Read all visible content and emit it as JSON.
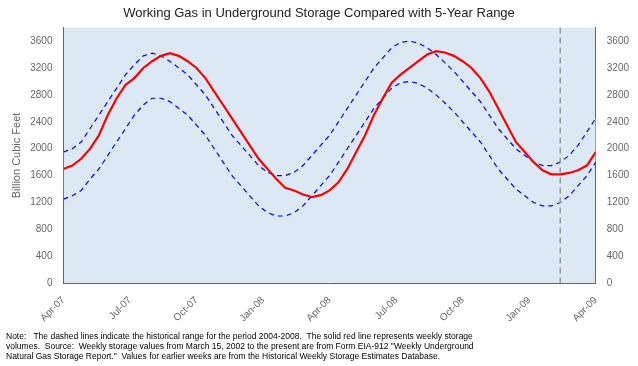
{
  "chart_data": {
    "type": "line",
    "title": "Working Gas in Underground Storage Compared with 5-Year Range",
    "ylabel": "Billion Cubic Feet",
    "note": "Note:   The dashed lines indicate the historical range for the period 2004-2008.  The solid red line represents weekly storage\nvolumes.  Source:  Weekly storage values from March 15, 2002 to the present are from Form EIA-912 \"Weekly Underground\nNatural Gas Storage Report.\"  Values for earlier weeks are from the Historical Weekly Storage Estimates Database.",
    "background_color": "#dce9f5",
    "x": [
      0,
      1,
      2,
      3,
      4,
      5,
      6,
      7,
      8,
      9,
      10,
      11,
      12,
      13,
      14,
      15,
      16,
      17,
      18,
      19,
      20,
      21,
      22,
      23,
      24,
      25,
      26,
      27,
      28,
      29,
      30,
      31,
      32,
      33,
      34,
      35,
      36,
      37,
      38,
      39,
      40,
      41,
      42,
      43,
      44,
      45,
      46,
      47,
      48,
      49,
      50,
      51,
      52,
      53,
      54,
      55,
      56,
      57,
      58,
      59,
      60
    ],
    "xlim": [
      0,
      60
    ],
    "xticks": [
      {
        "value": 0,
        "label": "Apr-07"
      },
      {
        "value": 7.5,
        "label": "Jul-07"
      },
      {
        "value": 15,
        "label": "Oct-07"
      },
      {
        "value": 22.5,
        "label": "Jan-08"
      },
      {
        "value": 30,
        "label": "Apr-08"
      },
      {
        "value": 37.5,
        "label": "Jul-08"
      },
      {
        "value": 45,
        "label": "Oct-08"
      },
      {
        "value": 52.5,
        "label": "Jan-09"
      },
      {
        "value": 60,
        "label": "Apr-09"
      }
    ],
    "ylim": [
      0,
      3800
    ],
    "yticks": [
      0,
      400,
      800,
      1200,
      1600,
      2000,
      2400,
      2800,
      3200,
      3600
    ],
    "y2lim": [
      0,
      3800
    ],
    "y2ticks": [
      0,
      400,
      800,
      1200,
      1600,
      2000,
      2400,
      2800,
      3200,
      3600
    ],
    "series": [
      {
        "color": "blue",
        "line_style": "dashed",
        "values": [
          1950,
          2000,
          2100,
          2300,
          2500,
          2700,
          2900,
          3100,
          3250,
          3380,
          3420,
          3380,
          3300,
          3200,
          3100,
          2950,
          2800,
          2600,
          2400,
          2200,
          2050,
          1900,
          1750,
          1650,
          1600,
          1600,
          1650,
          1750,
          1900,
          2050,
          2200,
          2400,
          2600,
          2800,
          3000,
          3200,
          3350,
          3500,
          3580,
          3600,
          3570,
          3500,
          3400,
          3280,
          3150,
          3000,
          2850,
          2700,
          2500,
          2300,
          2150,
          2000,
          1900,
          1800,
          1750,
          1750,
          1800,
          1900,
          2050,
          2250,
          2450
        ]
      },
      {
        "color": "blue",
        "line_style": "dashed",
        "values": [
          1250,
          1300,
          1380,
          1550,
          1700,
          1900,
          2100,
          2300,
          2500,
          2650,
          2750,
          2750,
          2700,
          2600,
          2500,
          2350,
          2200,
          2000,
          1800,
          1600,
          1450,
          1300,
          1150,
          1050,
          1000,
          1000,
          1050,
          1150,
          1300,
          1450,
          1600,
          1800,
          2000,
          2200,
          2400,
          2600,
          2750,
          2900,
          2980,
          3000,
          2970,
          2900,
          2800,
          2680,
          2550,
          2400,
          2250,
          2100,
          1900,
          1700,
          1550,
          1400,
          1300,
          1200,
          1150,
          1150,
          1200,
          1300,
          1450,
          1600,
          1800
        ]
      },
      {
        "color": "red",
        "line_style": "solid",
        "values": [
          1700,
          1750,
          1850,
          2000,
          2200,
          2500,
          2750,
          2950,
          3050,
          3200,
          3300,
          3380,
          3420,
          3380,
          3300,
          3200,
          3050,
          2850,
          2650,
          2450,
          2250,
          2050,
          1850,
          1700,
          1550,
          1420,
          1380,
          1320,
          1280,
          1310,
          1380,
          1500,
          1700,
          1950,
          2200,
          2500,
          2750,
          2980,
          3100,
          3200,
          3300,
          3400,
          3450,
          3430,
          3380,
          3300,
          3200,
          3050,
          2850,
          2600,
          2350,
          2100,
          1950,
          1800,
          1680,
          1620,
          1620,
          1640,
          1680,
          1750,
          1950
        ]
      }
    ],
    "vline": {
      "x": 56,
      "color": "#999999",
      "line_style": "dashed"
    }
  }
}
